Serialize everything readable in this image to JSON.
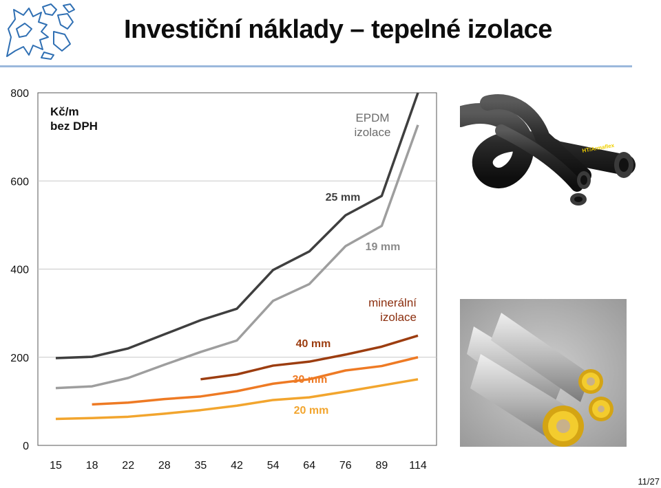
{
  "slide": {
    "title": "Investiční náklady – tepelné izolace",
    "page": "11/27"
  },
  "chart_data": {
    "type": "line",
    "categories": [
      "15",
      "18",
      "22",
      "28",
      "35",
      "42",
      "54",
      "64",
      "76",
      "89",
      "114"
    ],
    "yticks": [
      0,
      200,
      400,
      600,
      800
    ],
    "ylim": [
      0,
      800
    ],
    "grid": true,
    "unit_label": [
      "Kč/m",
      "bez DPH"
    ],
    "group_labels": [
      {
        "text": [
          "EPDM",
          "izolace"
        ],
        "color": "#6b6b6b"
      },
      {
        "text": [
          "minerální",
          "izolace"
        ],
        "color": "#8b2e0e"
      }
    ],
    "series": [
      {
        "name": "25 mm",
        "color": "#3f3f3f",
        "values": [
          198,
          201,
          220,
          252,
          284,
          310,
          398,
          440,
          522,
          566,
          800
        ]
      },
      {
        "name": "19 mm",
        "color": "#9e9e9e",
        "values": [
          130,
          134,
          153,
          183,
          212,
          238,
          328,
          366,
          452,
          498,
          727
        ]
      },
      {
        "name": "40 mm",
        "color": "#9c3d10",
        "values": [
          null,
          null,
          null,
          null,
          150,
          161,
          181,
          190,
          206,
          224,
          249
        ]
      },
      {
        "name": "30 mm",
        "color": "#ee7a24",
        "values": [
          null,
          93,
          97,
          105,
          111,
          123,
          140,
          150,
          170,
          180,
          200
        ]
      },
      {
        "name": "20 mm",
        "color": "#f2a52e",
        "values": [
          60,
          62,
          65,
          72,
          80,
          90,
          103,
          109,
          122,
          136,
          150
        ]
      }
    ]
  },
  "colors": {
    "title_rule": "#9bb8dc",
    "logo_blue": "#2f6fb3"
  },
  "images": [
    {
      "name": "epdm-tube-photo",
      "brand_text": "HT/Armaflex"
    },
    {
      "name": "mineral-wool-pipe-photo"
    }
  ]
}
